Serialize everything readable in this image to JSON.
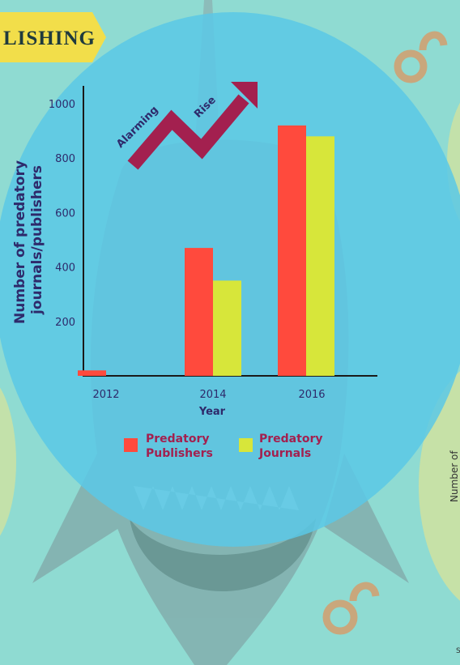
{
  "banner": {
    "text": "LISHING"
  },
  "annotation": {
    "word1": "Alarming",
    "word2": "Rise"
  },
  "side_text": {
    "label": "Number of",
    "footer": "S"
  },
  "colors": {
    "background": "#8fdbd2",
    "circle": "#5ac8e6",
    "banner": "#f2de4a",
    "axis_text": "#2e2a6b",
    "arrow": "#a3204f",
    "publishers": "#ff4a3d",
    "journals": "#d7e63a",
    "legend_text": "#a3204f",
    "oa_logo": "#c9a77c",
    "side_blob": "#d0e2a0"
  },
  "chart_data": {
    "type": "bar",
    "categories": [
      "2012",
      "2014",
      "2016"
    ],
    "series": [
      {
        "name": "Predatory Publishers",
        "values": [
          20,
          470,
          920
        ]
      },
      {
        "name": "Predatory Journals",
        "values": [
          null,
          350,
          880
        ]
      }
    ],
    "xlabel": "Year",
    "ylabel": "Number of predatory journals/publishers",
    "ylim": [
      0,
      1000
    ],
    "yticks": [
      200,
      400,
      600,
      800,
      1000
    ],
    "legend": {
      "position": "bottom",
      "items": [
        {
          "line1": "Predatory",
          "line2": "Publishers"
        },
        {
          "line1": "Predatory",
          "line2": "Journals"
        }
      ]
    },
    "grid": false
  }
}
